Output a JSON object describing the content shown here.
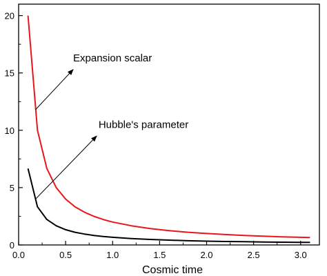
{
  "chart_data": {
    "type": "line",
    "title": "",
    "xlabel": "Cosmic time",
    "ylabel": "",
    "xlim": [
      0.0,
      3.2
    ],
    "ylim": [
      0,
      21
    ],
    "x_ticks": [
      0.0,
      0.5,
      1.0,
      1.5,
      2.0,
      2.5,
      3.0
    ],
    "x_tick_labels": [
      "0.0",
      "0.5",
      "1.0",
      "1.5",
      "2.0",
      "2.5",
      "3.0"
    ],
    "y_ticks": [
      0,
      5,
      10,
      15,
      20
    ],
    "y_tick_labels": [
      "0",
      "5",
      "10",
      "15",
      "20"
    ],
    "grid": false,
    "legend": "none",
    "series": [
      {
        "color": "#e8161b",
        "x": [
          0.1,
          0.2,
          0.3,
          0.4,
          0.5,
          0.6,
          0.7,
          0.8,
          0.9,
          1.0,
          1.2,
          1.4,
          1.6,
          1.8,
          2.0,
          2.2,
          2.4,
          2.6,
          2.8,
          3.0,
          3.1
        ],
        "y": [
          20.0,
          10.0,
          6.67,
          5.0,
          4.0,
          3.33,
          2.86,
          2.5,
          2.22,
          2.0,
          1.67,
          1.43,
          1.25,
          1.11,
          1.0,
          0.91,
          0.83,
          0.77,
          0.71,
          0.67,
          0.65
        ]
      },
      {
        "color": "#000000",
        "x": [
          0.1,
          0.2,
          0.3,
          0.4,
          0.5,
          0.6,
          0.7,
          0.8,
          0.9,
          1.0,
          1.2,
          1.4,
          1.6,
          1.8,
          2.0,
          2.2,
          2.4,
          2.6,
          2.8,
          3.0,
          3.1
        ],
        "y": [
          6.67,
          3.33,
          2.22,
          1.67,
          1.33,
          1.11,
          0.95,
          0.83,
          0.74,
          0.67,
          0.56,
          0.48,
          0.42,
          0.37,
          0.33,
          0.3,
          0.28,
          0.26,
          0.24,
          0.22,
          0.22
        ]
      }
    ],
    "annotations": [
      {
        "text": "Expansion scalar",
        "text_at": [
          0.58,
          16.0
        ],
        "arrow_from": [
          0.18,
          11.8
        ],
        "arrow_to": [
          0.58,
          15.3
        ]
      },
      {
        "text": "Hubble's parameter",
        "text_at": [
          0.85,
          10.2
        ],
        "arrow_from": [
          0.18,
          4.0
        ],
        "arrow_to": [
          0.83,
          9.5
        ]
      }
    ]
  }
}
